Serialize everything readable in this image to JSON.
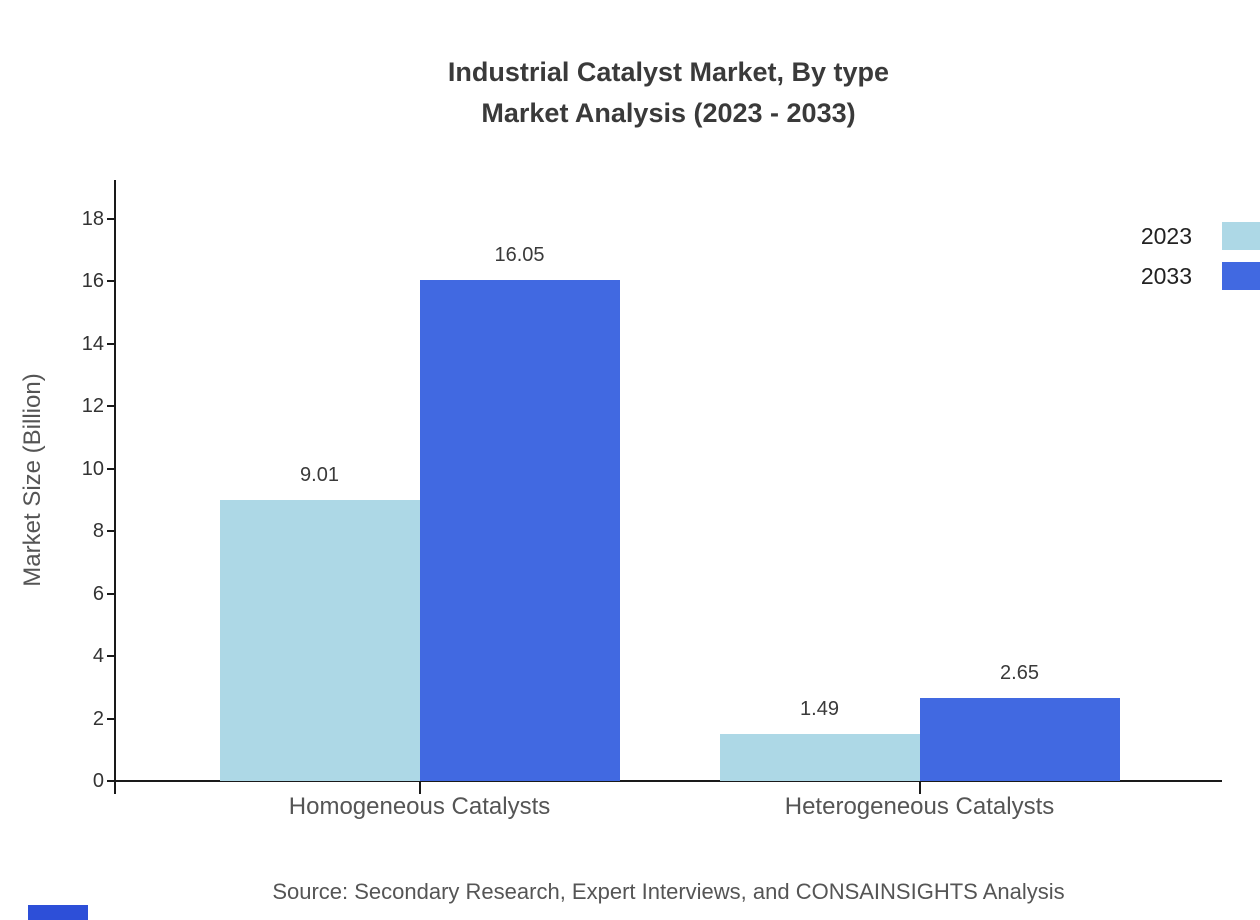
{
  "title": {
    "line1": "Industrial Catalyst Market, By type",
    "line2": "Market Analysis (2023 - 2033)"
  },
  "source": "Source: Secondary Research, Expert Interviews, and CONSAINSIGHTS Analysis",
  "chart_data": {
    "type": "bar",
    "title": "Industrial Catalyst Market, By type — Market Analysis (2023 - 2033)",
    "categories": [
      "Homogeneous Catalysts",
      "Heterogeneous Catalysts"
    ],
    "series": [
      {
        "name": "2023",
        "color": "#ADD8E6",
        "values": [
          9.01,
          1.49
        ],
        "labels": [
          "9.01",
          "1.49"
        ]
      },
      {
        "name": "2033",
        "color": "#4169E1",
        "values": [
          16.05,
          2.65
        ],
        "labels": [
          "16.05",
          "2.65"
        ]
      }
    ],
    "xlabel": "",
    "ylabel": "Market Size (Billion)",
    "ylim": [
      0,
      18
    ],
    "yticks": [
      0,
      2,
      4,
      6,
      8,
      10,
      12,
      14,
      16,
      18
    ],
    "grid": false,
    "legend_position": "top-right"
  },
  "colors": {
    "series_2023": "#ADD8E6",
    "series_2033": "#4169E1",
    "axis": "#1a1a1a",
    "title_text": "#3a3a3a",
    "tick_text": "#333333",
    "label_text": "#555555",
    "watermark_blue": "#2d4fd8"
  }
}
